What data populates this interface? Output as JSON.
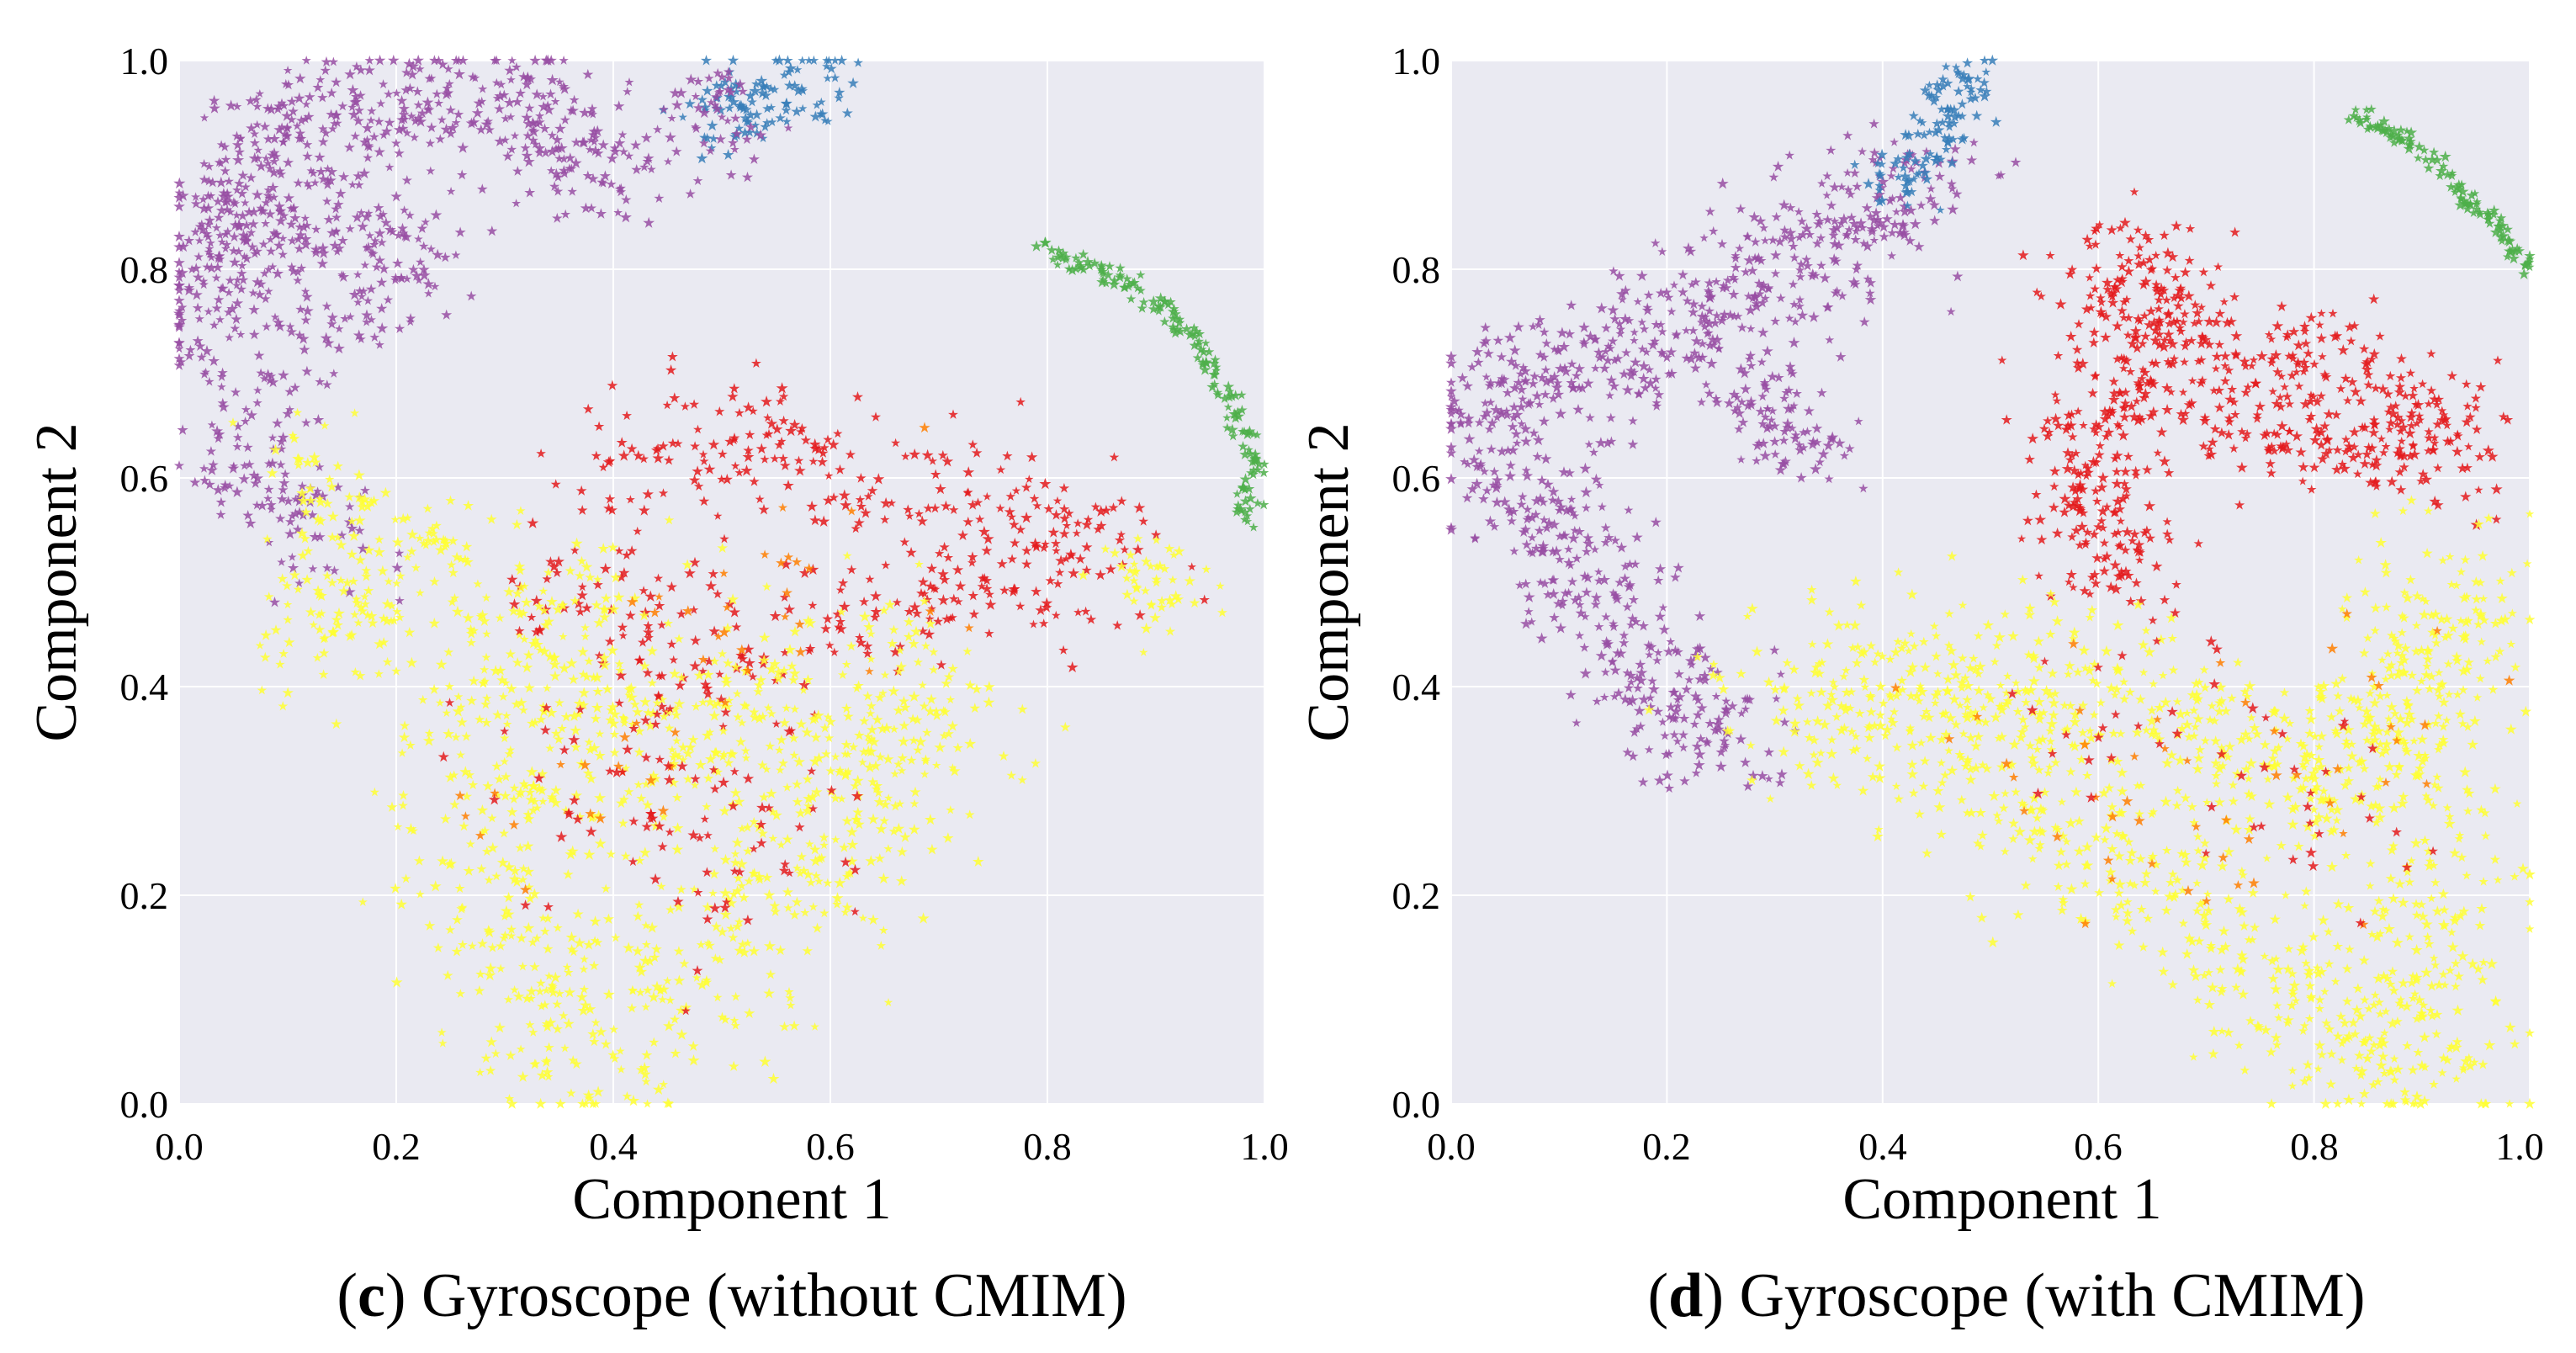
{
  "figure": {
    "panels": [
      {
        "id": "c",
        "caption_letter": "c",
        "caption_text": "Gyroscope (without CMIM)"
      },
      {
        "id": "d",
        "caption_letter": "d",
        "caption_text": "Gyroscope (with CMIM)"
      }
    ]
  },
  "colors": {
    "plot_background": "#eaeaf2",
    "grid": "#ffffff",
    "purple": "#984ea3",
    "blue": "#377eb8",
    "green": "#4daf4a",
    "red": "#e41a1c",
    "yellow": "#ffff33",
    "orange": "#ff7f00"
  },
  "chart_data": [
    {
      "type": "scatter",
      "panel": "c",
      "title": "(c) Gyroscope (without CMIM)",
      "xlabel": "Component 1",
      "ylabel": "Component 2",
      "xlim": [
        0.0,
        1.0
      ],
      "ylim": [
        0.0,
        1.0
      ],
      "xticks": [
        "0.0",
        "0.2",
        "0.4",
        "0.6",
        "0.8",
        "1.0"
      ],
      "yticks": [
        "0.0",
        "0.2",
        "0.4",
        "0.6",
        "0.8",
        "1.0"
      ],
      "grid": true,
      "marker": "star",
      "clusters": [
        {
          "color": "purple",
          "seed": 11,
          "count": 520,
          "spread": 0.03,
          "path": [
            [
              0.02,
              0.72
            ],
            [
              0.03,
              0.8
            ],
            [
              0.05,
              0.88
            ],
            [
              0.08,
              0.93
            ],
            [
              0.14,
              0.94
            ],
            [
              0.2,
              0.96
            ],
            [
              0.26,
              0.97
            ],
            [
              0.32,
              0.95
            ],
            [
              0.36,
              0.91
            ],
            [
              0.42,
              0.89
            ]
          ]
        },
        {
          "color": "purple",
          "seed": 12,
          "count": 330,
          "spread": 0.028,
          "path": [
            [
              0.05,
              0.85
            ],
            [
              0.1,
              0.82
            ],
            [
              0.15,
              0.86
            ],
            [
              0.22,
              0.82
            ],
            [
              0.17,
              0.77
            ],
            [
              0.12,
              0.72
            ],
            [
              0.08,
              0.67
            ],
            [
              0.05,
              0.62
            ],
            [
              0.07,
              0.58
            ],
            [
              0.12,
              0.57
            ],
            [
              0.16,
              0.52
            ]
          ]
        },
        {
          "color": "blue",
          "seed": 13,
          "count": 110,
          "spread": 0.022,
          "path": [
            [
              0.49,
              0.97
            ],
            [
              0.53,
              0.95
            ],
            [
              0.56,
              0.97
            ],
            [
              0.6,
              0.99
            ]
          ]
        },
        {
          "color": "purple",
          "seed": 14,
          "count": 45,
          "spread": 0.02,
          "path": [
            [
              0.48,
              0.97
            ],
            [
              0.51,
              0.91
            ],
            [
              0.5,
              0.99
            ]
          ]
        },
        {
          "color": "green",
          "seed": 15,
          "count": 170,
          "spread": 0.006,
          "path": [
            [
              0.79,
              0.82
            ],
            [
              0.85,
              0.8
            ],
            [
              0.91,
              0.76
            ],
            [
              0.95,
              0.71
            ],
            [
              0.98,
              0.65
            ],
            [
              0.99,
              0.6
            ],
            [
              0.98,
              0.56
            ]
          ]
        },
        {
          "color": "red",
          "seed": 16,
          "count": 430,
          "spread": 0.035,
          "path": [
            [
              0.4,
              0.57
            ],
            [
              0.45,
              0.62
            ],
            [
              0.5,
              0.64
            ],
            [
              0.55,
              0.65
            ],
            [
              0.58,
              0.6
            ],
            [
              0.66,
              0.59
            ],
            [
              0.73,
              0.6
            ],
            [
              0.8,
              0.56
            ],
            [
              0.86,
              0.53
            ],
            [
              0.78,
              0.5
            ],
            [
              0.7,
              0.49
            ],
            [
              0.62,
              0.46
            ],
            [
              0.55,
              0.44
            ],
            [
              0.47,
              0.43
            ],
            [
              0.4,
              0.45
            ],
            [
              0.36,
              0.52
            ]
          ]
        },
        {
          "color": "yellow",
          "seed": 17,
          "count": 950,
          "spread": 0.05,
          "path": [
            [
              0.3,
              0.5
            ],
            [
              0.28,
              0.4
            ],
            [
              0.28,
              0.28
            ],
            [
              0.3,
              0.16
            ],
            [
              0.35,
              0.08
            ],
            [
              0.4,
              0.04
            ],
            [
              0.45,
              0.08
            ],
            [
              0.5,
              0.14
            ],
            [
              0.55,
              0.2
            ],
            [
              0.6,
              0.25
            ],
            [
              0.65,
              0.32
            ],
            [
              0.7,
              0.35
            ],
            [
              0.6,
              0.4
            ],
            [
              0.5,
              0.38
            ],
            [
              0.43,
              0.3
            ],
            [
              0.4,
              0.4
            ],
            [
              0.35,
              0.48
            ]
          ]
        },
        {
          "color": "yellow",
          "seed": 18,
          "count": 130,
          "spread": 0.028,
          "path": [
            [
              0.1,
              0.63
            ],
            [
              0.13,
              0.58
            ],
            [
              0.15,
              0.5
            ],
            [
              0.18,
              0.47
            ],
            [
              0.12,
              0.46
            ],
            [
              0.1,
              0.42
            ]
          ]
        },
        {
          "color": "yellow",
          "seed": 19,
          "count": 45,
          "spread": 0.02,
          "path": [
            [
              0.88,
              0.52
            ],
            [
              0.9,
              0.49
            ],
            [
              0.92,
              0.47
            ]
          ]
        },
        {
          "color": "yellow",
          "seed": 20,
          "count": 30,
          "spread": 0.015,
          "path": [
            [
              0.22,
              0.55
            ],
            [
              0.24,
              0.53
            ]
          ]
        },
        {
          "color": "orange",
          "seed": 21,
          "count": 45,
          "spread": 0.05,
          "path": [
            [
              0.25,
              0.25
            ],
            [
              0.32,
              0.3
            ],
            [
              0.45,
              0.38
            ],
            [
              0.55,
              0.5
            ],
            [
              0.7,
              0.52
            ]
          ]
        },
        {
          "color": "red",
          "seed": 22,
          "count": 90,
          "spread": 0.06,
          "path": [
            [
              0.35,
              0.35
            ],
            [
              0.42,
              0.3
            ],
            [
              0.47,
              0.25
            ],
            [
              0.55,
              0.33
            ]
          ]
        }
      ]
    },
    {
      "type": "scatter",
      "panel": "d",
      "title": "(d) Gyroscope (with CMIM)",
      "xlabel": "Component 1",
      "ylabel": "Component 2",
      "xlim": [
        0.0,
        1.0
      ],
      "ylim": [
        0.0,
        1.0
      ],
      "xticks": [
        "0.0",
        "0.2",
        "0.4",
        "0.6",
        "0.8",
        "1.0"
      ],
      "yticks": [
        "0.0",
        "0.2",
        "0.4",
        "0.6",
        "0.8",
        "1.0"
      ],
      "grid": true,
      "marker": "star",
      "clusters": [
        {
          "color": "purple",
          "seed": 31,
          "count": 820,
          "spread": 0.033,
          "path": [
            [
              0.46,
              0.9
            ],
            [
              0.4,
              0.85
            ],
            [
              0.33,
              0.82
            ],
            [
              0.28,
              0.78
            ],
            [
              0.22,
              0.75
            ],
            [
              0.15,
              0.72
            ],
            [
              0.08,
              0.7
            ],
            [
              0.03,
              0.66
            ],
            [
              0.04,
              0.6
            ],
            [
              0.09,
              0.58
            ],
            [
              0.12,
              0.52
            ],
            [
              0.14,
              0.46
            ],
            [
              0.18,
              0.41
            ],
            [
              0.22,
              0.37
            ],
            [
              0.28,
              0.36
            ]
          ]
        },
        {
          "color": "purple",
          "seed": 32,
          "count": 90,
          "spread": 0.02,
          "path": [
            [
              0.26,
              0.68
            ],
            [
              0.3,
              0.66
            ],
            [
              0.33,
              0.64
            ],
            [
              0.35,
              0.61
            ]
          ]
        },
        {
          "color": "blue",
          "seed": 33,
          "count": 110,
          "spread": 0.018,
          "path": [
            [
              0.4,
              0.88
            ],
            [
              0.44,
              0.92
            ],
            [
              0.47,
              0.96
            ],
            [
              0.47,
              0.99
            ]
          ]
        },
        {
          "color": "green",
          "seed": 34,
          "count": 120,
          "spread": 0.005,
          "path": [
            [
              0.84,
              0.95
            ],
            [
              0.89,
              0.92
            ],
            [
              0.94,
              0.87
            ],
            [
              0.98,
              0.83
            ],
            [
              1.0,
              0.8
            ]
          ]
        },
        {
          "color": "red",
          "seed": 35,
          "count": 680,
          "spread": 0.03,
          "path": [
            [
              0.56,
              0.61
            ],
            [
              0.6,
              0.56
            ],
            [
              0.62,
              0.51
            ],
            [
              0.59,
              0.65
            ],
            [
              0.64,
              0.68
            ],
            [
              0.62,
              0.74
            ],
            [
              0.6,
              0.79
            ],
            [
              0.66,
              0.81
            ],
            [
              0.67,
              0.74
            ],
            [
              0.72,
              0.7
            ],
            [
              0.77,
              0.71
            ],
            [
              0.83,
              0.72
            ],
            [
              0.88,
              0.68
            ],
            [
              0.93,
              0.63
            ],
            [
              0.84,
              0.63
            ],
            [
              0.75,
              0.65
            ],
            [
              0.69,
              0.64
            ]
          ]
        },
        {
          "color": "yellow",
          "seed": 36,
          "count": 1250,
          "spread": 0.045,
          "path": [
            [
              0.28,
              0.41
            ],
            [
              0.34,
              0.38
            ],
            [
              0.42,
              0.36
            ],
            [
              0.5,
              0.33
            ],
            [
              0.56,
              0.28
            ],
            [
              0.62,
              0.22
            ],
            [
              0.7,
              0.16
            ],
            [
              0.78,
              0.1
            ],
            [
              0.86,
              0.05
            ],
            [
              0.9,
              0.02
            ],
            [
              0.92,
              0.12
            ],
            [
              0.9,
              0.22
            ],
            [
              0.88,
              0.32
            ],
            [
              0.9,
              0.42
            ],
            [
              0.93,
              0.5
            ],
            [
              0.84,
              0.34
            ],
            [
              0.78,
              0.3
            ],
            [
              0.72,
              0.35
            ],
            [
              0.65,
              0.39
            ],
            [
              0.56,
              0.4
            ],
            [
              0.46,
              0.4
            ],
            [
              0.38,
              0.4
            ]
          ]
        },
        {
          "color": "orange",
          "seed": 37,
          "count": 50,
          "spread": 0.06,
          "path": [
            [
              0.5,
              0.35
            ],
            [
              0.6,
              0.3
            ],
            [
              0.7,
              0.25
            ],
            [
              0.8,
              0.3
            ],
            [
              0.88,
              0.4
            ]
          ]
        },
        {
          "color": "red",
          "seed": 38,
          "count": 50,
          "spread": 0.05,
          "path": [
            [
              0.55,
              0.36
            ],
            [
              0.65,
              0.4
            ],
            [
              0.75,
              0.35
            ],
            [
              0.85,
              0.22
            ]
          ]
        }
      ]
    }
  ]
}
